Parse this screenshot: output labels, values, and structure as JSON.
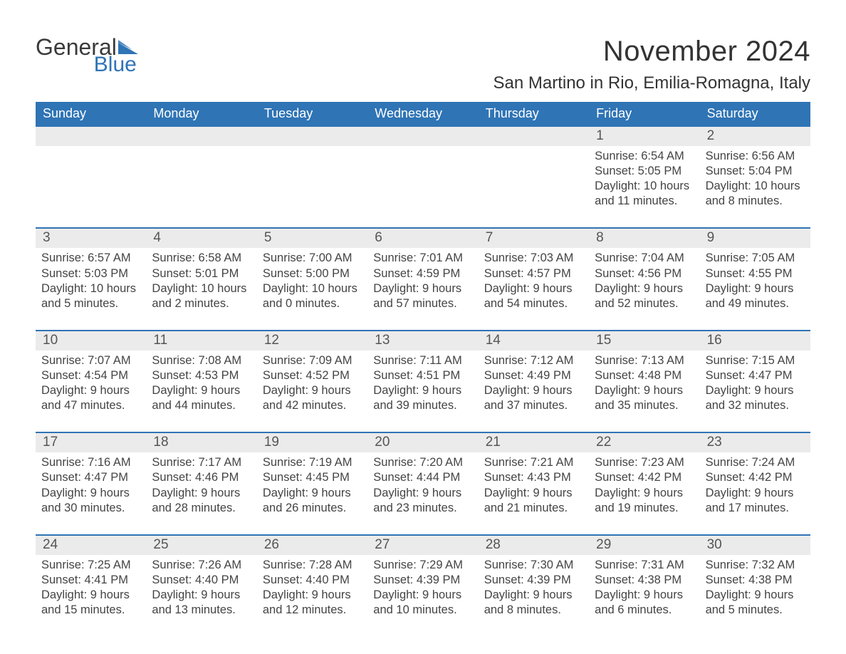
{
  "logo": {
    "text_general": "General",
    "text_blue": "Blue",
    "flag_color": "#2f74b5",
    "general_color": "#3a3a3a",
    "blue_color": "#2f74b5"
  },
  "title": {
    "month": "November 2024",
    "location": "San Martino in Rio, Emilia-Romagna, Italy",
    "month_fontsize": 40,
    "location_fontsize": 24,
    "text_color": "#333333"
  },
  "calendar": {
    "header_bg": "#2f74b5",
    "header_text_color": "#ffffff",
    "row_border_color": "#2f74b5",
    "daynum_bg": "#ebebeb",
    "body_text_color": "#444444",
    "daynum_text_color": "#555555",
    "days_of_week": [
      "Sunday",
      "Monday",
      "Tuesday",
      "Wednesday",
      "Thursday",
      "Friday",
      "Saturday"
    ],
    "labels": {
      "sunrise": "Sunrise:",
      "sunset": "Sunset:",
      "daylight": "Daylight:"
    },
    "weeks": [
      [
        null,
        null,
        null,
        null,
        null,
        {
          "day": "1",
          "sunrise": "6:54 AM",
          "sunset": "5:05 PM",
          "daylight": "10 hours and 11 minutes."
        },
        {
          "day": "2",
          "sunrise": "6:56 AM",
          "sunset": "5:04 PM",
          "daylight": "10 hours and 8 minutes."
        }
      ],
      [
        {
          "day": "3",
          "sunrise": "6:57 AM",
          "sunset": "5:03 PM",
          "daylight": "10 hours and 5 minutes."
        },
        {
          "day": "4",
          "sunrise": "6:58 AM",
          "sunset": "5:01 PM",
          "daylight": "10 hours and 2 minutes."
        },
        {
          "day": "5",
          "sunrise": "7:00 AM",
          "sunset": "5:00 PM",
          "daylight": "10 hours and 0 minutes."
        },
        {
          "day": "6",
          "sunrise": "7:01 AM",
          "sunset": "4:59 PM",
          "daylight": "9 hours and 57 minutes."
        },
        {
          "day": "7",
          "sunrise": "7:03 AM",
          "sunset": "4:57 PM",
          "daylight": "9 hours and 54 minutes."
        },
        {
          "day": "8",
          "sunrise": "7:04 AM",
          "sunset": "4:56 PM",
          "daylight": "9 hours and 52 minutes."
        },
        {
          "day": "9",
          "sunrise": "7:05 AM",
          "sunset": "4:55 PM",
          "daylight": "9 hours and 49 minutes."
        }
      ],
      [
        {
          "day": "10",
          "sunrise": "7:07 AM",
          "sunset": "4:54 PM",
          "daylight": "9 hours and 47 minutes."
        },
        {
          "day": "11",
          "sunrise": "7:08 AM",
          "sunset": "4:53 PM",
          "daylight": "9 hours and 44 minutes."
        },
        {
          "day": "12",
          "sunrise": "7:09 AM",
          "sunset": "4:52 PM",
          "daylight": "9 hours and 42 minutes."
        },
        {
          "day": "13",
          "sunrise": "7:11 AM",
          "sunset": "4:51 PM",
          "daylight": "9 hours and 39 minutes."
        },
        {
          "day": "14",
          "sunrise": "7:12 AM",
          "sunset": "4:49 PM",
          "daylight": "9 hours and 37 minutes."
        },
        {
          "day": "15",
          "sunrise": "7:13 AM",
          "sunset": "4:48 PM",
          "daylight": "9 hours and 35 minutes."
        },
        {
          "day": "16",
          "sunrise": "7:15 AM",
          "sunset": "4:47 PM",
          "daylight": "9 hours and 32 minutes."
        }
      ],
      [
        {
          "day": "17",
          "sunrise": "7:16 AM",
          "sunset": "4:47 PM",
          "daylight": "9 hours and 30 minutes."
        },
        {
          "day": "18",
          "sunrise": "7:17 AM",
          "sunset": "4:46 PM",
          "daylight": "9 hours and 28 minutes."
        },
        {
          "day": "19",
          "sunrise": "7:19 AM",
          "sunset": "4:45 PM",
          "daylight": "9 hours and 26 minutes."
        },
        {
          "day": "20",
          "sunrise": "7:20 AM",
          "sunset": "4:44 PM",
          "daylight": "9 hours and 23 minutes."
        },
        {
          "day": "21",
          "sunrise": "7:21 AM",
          "sunset": "4:43 PM",
          "daylight": "9 hours and 21 minutes."
        },
        {
          "day": "22",
          "sunrise": "7:23 AM",
          "sunset": "4:42 PM",
          "daylight": "9 hours and 19 minutes."
        },
        {
          "day": "23",
          "sunrise": "7:24 AM",
          "sunset": "4:42 PM",
          "daylight": "9 hours and 17 minutes."
        }
      ],
      [
        {
          "day": "24",
          "sunrise": "7:25 AM",
          "sunset": "4:41 PM",
          "daylight": "9 hours and 15 minutes."
        },
        {
          "day": "25",
          "sunrise": "7:26 AM",
          "sunset": "4:40 PM",
          "daylight": "9 hours and 13 minutes."
        },
        {
          "day": "26",
          "sunrise": "7:28 AM",
          "sunset": "4:40 PM",
          "daylight": "9 hours and 12 minutes."
        },
        {
          "day": "27",
          "sunrise": "7:29 AM",
          "sunset": "4:39 PM",
          "daylight": "9 hours and 10 minutes."
        },
        {
          "day": "28",
          "sunrise": "7:30 AM",
          "sunset": "4:39 PM",
          "daylight": "9 hours and 8 minutes."
        },
        {
          "day": "29",
          "sunrise": "7:31 AM",
          "sunset": "4:38 PM",
          "daylight": "9 hours and 6 minutes."
        },
        {
          "day": "30",
          "sunrise": "7:32 AM",
          "sunset": "4:38 PM",
          "daylight": "9 hours and 5 minutes."
        }
      ]
    ]
  }
}
